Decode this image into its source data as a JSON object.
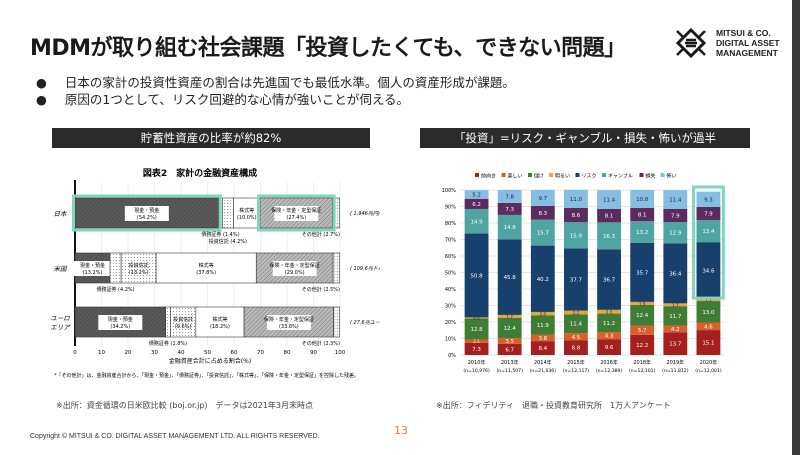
{
  "title": "MDMが取り組む社会課題「投資したくても、できない問題」",
  "logo": {
    "lines": [
      "MITSUI & CO.",
      "DIGITAL ASSET",
      "MANAGEMENT"
    ]
  },
  "bullets": [
    {
      "mark": "●",
      "text": "日本の家計の投資性資産の割合は先進国でも最低水準。個人の資産形成が課題。"
    },
    {
      "mark": "●",
      "text": "原因の1つとして、リスク回避的な心情が強いことが伺える。"
    }
  ],
  "left_panel": {
    "header": "貯蓄性資産の比率が約82%",
    "source": "※出所：資金循環の日米欧比較 (boj.or.jp)　データは2021年3月末時点"
  },
  "right_panel": {
    "header": "「投資」=リスク・ギャンブル・損失・怖いが過半",
    "source": "※出所：フィデリティ　退職・投資教育研究所　1万人アンケート"
  },
  "footer": "Copyright © MITSUI & CO. DIGITAL ASSET MANAGEMENT LTD. ALL RIGHTS RESERVED.",
  "page_number": "13",
  "highlight_color": "#7fd6bd",
  "chart_data": [
    {
      "type": "bar",
      "orientation": "horizontal-stacked",
      "title": "図表2　家計の金融資産構成",
      "xlabel": "金融資産合計に占める割合(%)",
      "xlim": [
        0,
        100
      ],
      "xticks": [
        0,
        10,
        20,
        30,
        40,
        50,
        60,
        70,
        80,
        90,
        100
      ],
      "note": "*「その他計」は、金融資産合計から、「現金・預金」、「債務証券」、「投資信託」、「株式等」、「保険・年金・定型保証」を控除した残差。",
      "segment_names": [
        "現金・預金",
        "債務証券",
        "投資信託",
        "株式等",
        "保険・年金・定型保証",
        "その他計"
      ],
      "categories": [
        {
          "name": "日本",
          "total": "( 1,946兆円)",
          "values": [
            54.2,
            1.4,
            4.2,
            10.0,
            27.4,
            2.7
          ],
          "highlight": [
            0,
            4
          ]
        },
        {
          "name": "米国",
          "total": "( 109.6兆ドル)",
          "values": [
            13.2,
            4.2,
            13.2,
            37.8,
            29.0,
            2.5
          ],
          "highlight": []
        },
        {
          "name": "ユーロエリア",
          "total": "( 27.6兆ユーロ)",
          "values": [
            34.2,
            1.8,
            9.6,
            18.2,
            33.8,
            2.3
          ],
          "highlight": []
        }
      ]
    },
    {
      "type": "bar",
      "orientation": "vertical-stacked-100",
      "ylim": [
        0,
        100
      ],
      "yticks": [
        "0%",
        "10%",
        "20%",
        "30%",
        "40%",
        "50%",
        "60%",
        "70%",
        "80%",
        "90%",
        "100%"
      ],
      "categories": [
        "2010年",
        "2013年",
        "2014年",
        "2015年",
        "2016年",
        "2018年",
        "2019年",
        "2020年"
      ],
      "sample_sizes": [
        "(n=10,976)",
        "(n=11,507)",
        "(n=21,036)",
        "(n=12,117)",
        "(n=12,389)",
        "(n=12,101)",
        "(n=11,812)",
        "(n=12,001)"
      ],
      "highlight_category": "2020年",
      "series": [
        {
          "name": "前向き",
          "color": "#a51f1f",
          "values": [
            7.3,
            6.7,
            8.4,
            8.8,
            9.6,
            12.2,
            13.7,
            15.1
          ]
        },
        {
          "name": "楽しい",
          "color": "#d8612b",
          "values": [
            2.1,
            3.5,
            3.8,
            4.5,
            4.3,
            5.7,
            4.2,
            4.6
          ]
        },
        {
          "name": "儲け",
          "color": "#3f7d36",
          "values": [
            12.8,
            12.4,
            11.9,
            11.4,
            11.2,
            12.4,
            11.7,
            13.0
          ]
        },
        {
          "name": "明るい",
          "color": "#e9a43a",
          "values": [
            0.6,
            1.7,
            2.0,
            2.2,
            2.3,
            1.9,
            1.7,
            1.1
          ]
        },
        {
          "name": "リスク",
          "color": "#17406c",
          "values": [
            50.8,
            45.8,
            40.2,
            37.7,
            36.7,
            35.7,
            36.4,
            34.6
          ]
        },
        {
          "name": "ギャンブル",
          "color": "#4fa5a1",
          "values": [
            14.9,
            14.8,
            15.7,
            15.9,
            16.3,
            13.2,
            12.9,
            13.4
          ]
        },
        {
          "name": "損失",
          "color": "#5b2a5f",
          "values": [
            6.2,
            7.3,
            8.3,
            8.6,
            8.1,
            8.1,
            7.9,
            7.9
          ]
        },
        {
          "name": "怖い",
          "color": "#86bde3",
          "values": [
            5.2,
            7.8,
            9.7,
            11.0,
            11.4,
            10.8,
            11.4,
            9.3
          ]
        }
      ]
    }
  ]
}
